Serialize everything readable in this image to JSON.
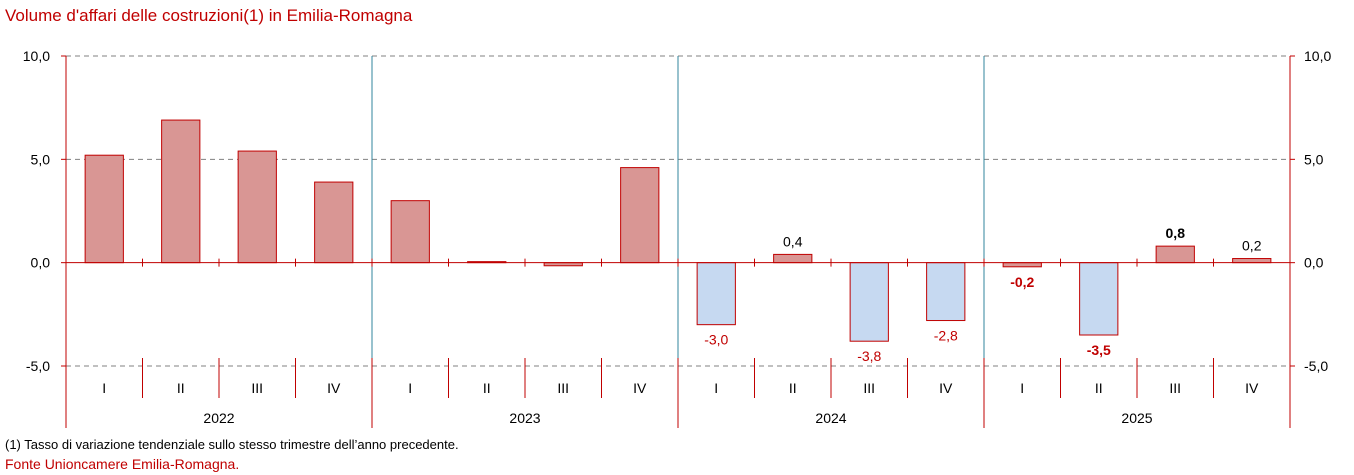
{
  "chart_data": {
    "type": "bar",
    "title": "Volume d'affari delle costruzioni(1) in Emilia-Romagna",
    "years": [
      "2022",
      "2023",
      "2024",
      "2025"
    ],
    "quarters": [
      "I",
      "II",
      "III",
      "IV"
    ],
    "categories": [
      "I",
      "II",
      "III",
      "IV",
      "I",
      "II",
      "III",
      "IV",
      "I",
      "II",
      "III",
      "IV",
      "I",
      "II",
      "III",
      "IV"
    ],
    "values": [
      5.2,
      6.9,
      5.4,
      3.9,
      3.0,
      0.05,
      -0.15,
      4.6,
      -3.0,
      0.4,
      -3.8,
      -2.8,
      -0.2,
      -3.5,
      0.8,
      0.2
    ],
    "data_labels": [
      "",
      "",
      "",
      "",
      "",
      "",
      "",
      "",
      "-3,0",
      "0,4",
      "-3,8",
      "-2,8",
      "-0,2",
      "-3,5",
      "0,8",
      "0,2"
    ],
    "label_emphasis": [
      false,
      false,
      false,
      false,
      false,
      false,
      false,
      false,
      false,
      false,
      false,
      false,
      true,
      true,
      true,
      false
    ],
    "ylim": [
      -5,
      10
    ],
    "yticks": [
      -5,
      0,
      5,
      10
    ],
    "ytick_labels": [
      "-5,0",
      "0,0",
      "5,0",
      "10,0"
    ],
    "grid": true,
    "colors": {
      "positive_fill": "#d99694",
      "positive_stroke": "#c00000",
      "negative_fill": "#c6d9f1",
      "negative_stroke": "#c00000",
      "axis": "#c00000",
      "year_divider": "#31859c",
      "gridline": "#808080",
      "label_normal": "#000000",
      "label_negative": "#c00000"
    }
  },
  "footnote": "(1) Tasso di variazione tendenziale sullo stesso trimestre dell’anno precedente.",
  "source": "Fonte Unioncamere Emilia-Romagna."
}
